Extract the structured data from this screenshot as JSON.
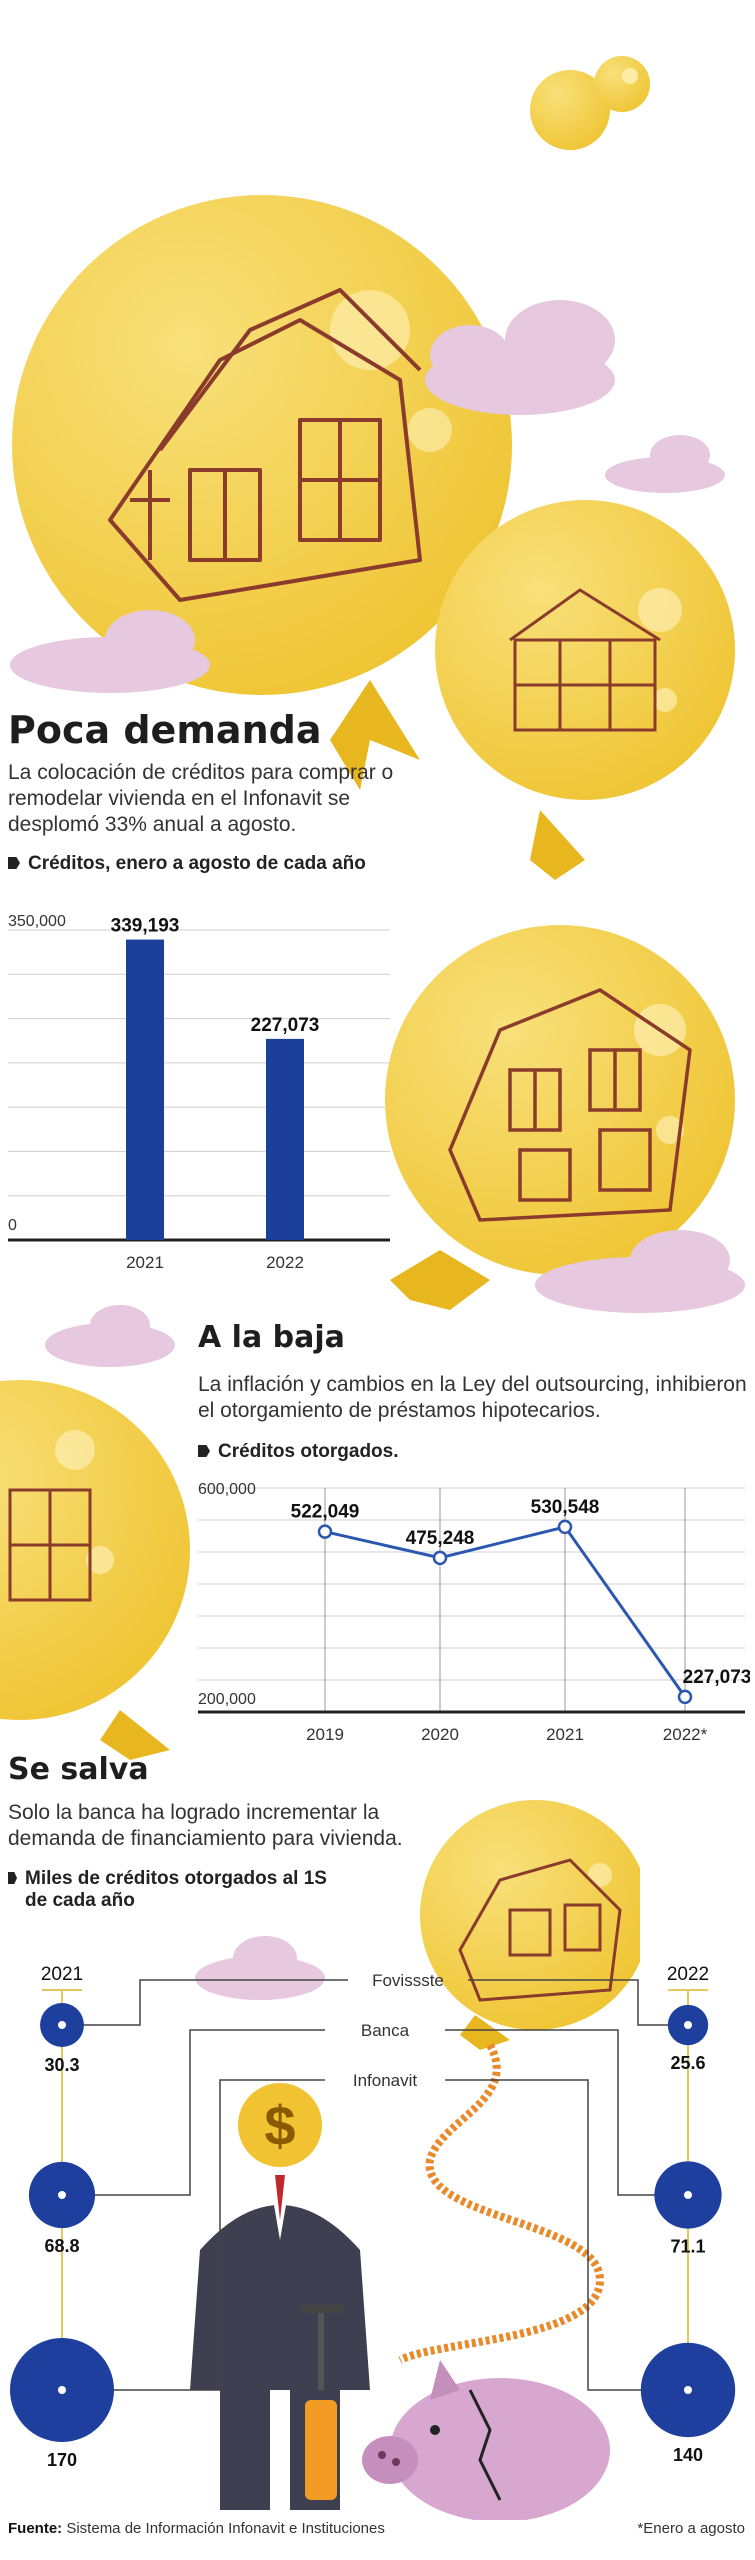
{
  "sections": {
    "s1": {
      "title": "Poca demanda",
      "lead": "La colocación de créditos para comprar o remodelar vivienda en el Infonavit se desplomó 33% anual a agosto.",
      "subtitle": "Créditos, enero a agosto de cada año"
    },
    "s2": {
      "title": "A la baja",
      "lead": "La inflación y cambios en la Ley del outsourcing, inhibieron el otorgamiento de préstamos hipotecarios.",
      "subtitle": "Créditos otorgados."
    },
    "s3": {
      "title": "Se salva",
      "lead": "Solo la banca ha logrado incrementar la demanda de financiamiento para vivienda.",
      "subtitle": "Miles de créditos otorgados al 1S de cada año"
    }
  },
  "footer": {
    "source_label": "Fuente:",
    "source_text": "Sistema de Información Infonavit e Instituciones",
    "note": "*Enero a agosto"
  },
  "colors": {
    "bar": "#1b3f9a",
    "line": "#2b57b0",
    "circle": "#1e3f9e",
    "balloon": "#f4d35a",
    "balloon_shade": "#f1c232",
    "house": "#8a3b2b",
    "knot": "#e8b71f",
    "cloud": "#e6c8df"
  },
  "chart_data": [
    {
      "type": "bar",
      "categories": [
        "2021",
        "2022"
      ],
      "values": [
        339193,
        227073
      ],
      "value_labels": [
        "339,193",
        "227,073"
      ],
      "ylim": [
        0,
        350000
      ],
      "y_ticks": [
        "0",
        "350,000"
      ],
      "grid": true
    },
    {
      "type": "line",
      "categories": [
        "2019",
        "2020",
        "2021",
        "2022*"
      ],
      "values": [
        522049,
        475248,
        530548,
        227073
      ],
      "value_labels": [
        "522,049",
        "475,248",
        "530,548",
        "227,073"
      ],
      "ylim": [
        200000,
        600000
      ],
      "y_ticks": [
        "200,000",
        "600,000"
      ],
      "grid": true
    },
    {
      "type": "bubble",
      "years": [
        "2021",
        "2022"
      ],
      "series": [
        {
          "name": "Fovissste",
          "values": [
            30.3,
            25.6
          ],
          "value_labels": [
            "30.3",
            "25.6"
          ]
        },
        {
          "name": "Banca",
          "values": [
            68.8,
            71.1
          ],
          "value_labels": [
            "68.8",
            "71.1"
          ]
        },
        {
          "name": "Infonavit",
          "values": [
            170,
            140
          ],
          "value_labels": [
            "170",
            "140"
          ]
        }
      ]
    }
  ]
}
